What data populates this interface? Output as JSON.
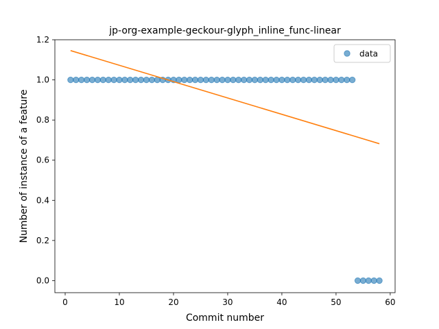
{
  "chart_data": {
    "type": "scatter",
    "title": "jp-org-example-geckour-glyph_inline_func-linear",
    "xlabel": "Commit number",
    "ylabel": "Number of instance of a feature",
    "xlim": [
      -1.9,
      60.9
    ],
    "ylim": [
      -0.06,
      1.2
    ],
    "xticks": [
      0,
      10,
      20,
      30,
      40,
      50,
      60
    ],
    "yticks": [
      0.0,
      0.2,
      0.4,
      0.6,
      0.8,
      1.0,
      1.2
    ],
    "grid": false,
    "legend_position": "top-right",
    "series": [
      {
        "name": "data",
        "kind": "scatter",
        "color": "#1f77b4",
        "x": [
          1,
          2,
          3,
          4,
          5,
          6,
          7,
          8,
          9,
          10,
          11,
          12,
          13,
          14,
          15,
          16,
          17,
          18,
          19,
          20,
          21,
          22,
          23,
          24,
          25,
          26,
          27,
          28,
          29,
          30,
          31,
          32,
          33,
          34,
          35,
          36,
          37,
          38,
          39,
          40,
          41,
          42,
          43,
          44,
          45,
          46,
          47,
          48,
          49,
          50,
          51,
          52,
          53,
          54,
          55,
          56,
          57,
          58
        ],
        "y": [
          1,
          1,
          1,
          1,
          1,
          1,
          1,
          1,
          1,
          1,
          1,
          1,
          1,
          1,
          1,
          1,
          1,
          1,
          1,
          1,
          1,
          1,
          1,
          1,
          1,
          1,
          1,
          1,
          1,
          1,
          1,
          1,
          1,
          1,
          1,
          1,
          1,
          1,
          1,
          1,
          1,
          1,
          1,
          1,
          1,
          1,
          1,
          1,
          1,
          1,
          1,
          1,
          1,
          0,
          0,
          0,
          0,
          0
        ]
      },
      {
        "kind": "line",
        "color": "#ff7f0e",
        "x": [
          1,
          58
        ],
        "y": [
          1.146,
          0.682
        ]
      }
    ]
  }
}
